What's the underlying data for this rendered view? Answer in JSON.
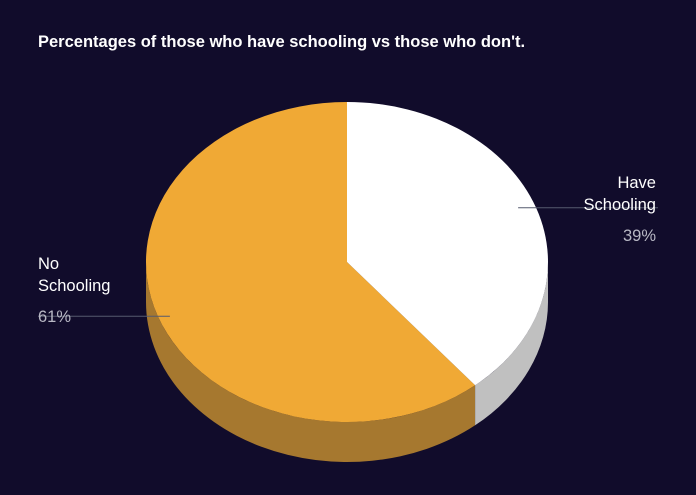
{
  "chart_data": {
    "type": "pie",
    "title": "Percentages of those who have schooling vs those who don't.",
    "three_d": true,
    "legend": "none",
    "slices": [
      {
        "label": "No Schooling",
        "line1": "No",
        "line2": "Schooling",
        "value": 61,
        "value_label": "61%",
        "color": "#f0a935",
        "side_color": "#a6782f"
      },
      {
        "label": "Have Schooling",
        "line1": "Have",
        "line2": "Schooling",
        "value": 39,
        "value_label": "39%",
        "color": "#ffffff",
        "side_color": "#c0c0c0"
      }
    ]
  }
}
